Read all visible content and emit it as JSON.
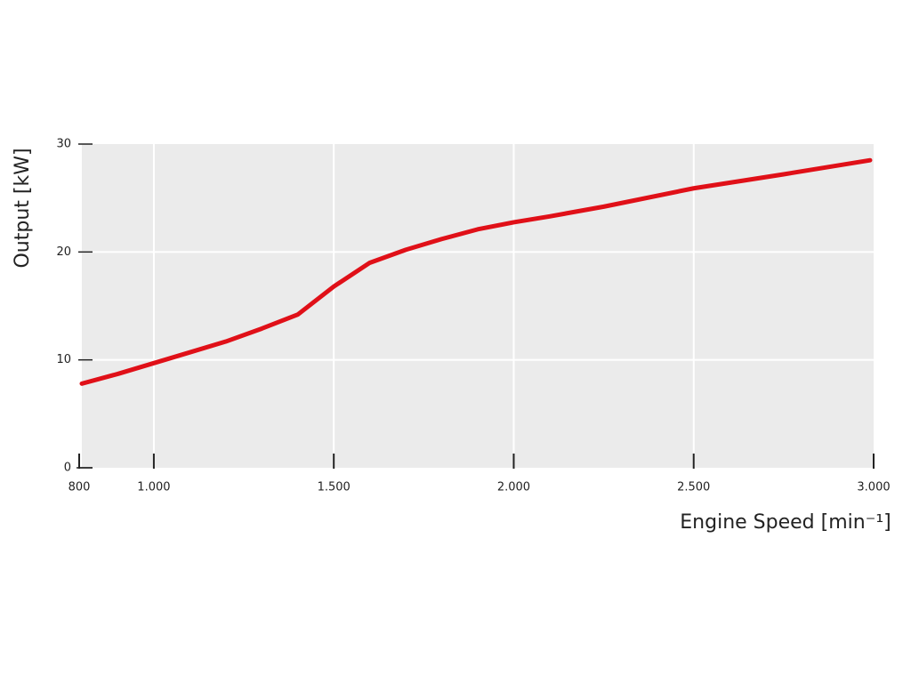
{
  "chart_data": {
    "type": "line",
    "xlabel": "Engine Speed [min⁻¹]",
    "ylabel": "Output [kW]",
    "series": [
      {
        "color": "#e01018",
        "x": [
          800,
          900,
          1000,
          1100,
          1200,
          1300,
          1400,
          1500,
          1600,
          1700,
          1800,
          1900,
          2000,
          2100,
          2250,
          2500,
          2750,
          2990
        ],
        "values": [
          7.8,
          8.7,
          9.7,
          10.7,
          11.7,
          12.9,
          14.2,
          16.8,
          19.0,
          20.2,
          21.2,
          22.1,
          22.75,
          23.3,
          24.2,
          25.9,
          27.2,
          28.5
        ]
      }
    ],
    "xlim": [
      800,
      3000
    ],
    "xticks": [
      800,
      {
        "value": 1000,
        "label": "1.000"
      },
      {
        "value": 1500,
        "label": "1.500"
      },
      {
        "value": 2000,
        "label": "2.000"
      },
      {
        "value": 2500,
        "label": "2.500"
      },
      {
        "value": 3000,
        "label": "3.000"
      }
    ],
    "ylim": [
      0,
      30
    ],
    "yticks": [
      0,
      10,
      20,
      30
    ],
    "grid": true
  }
}
